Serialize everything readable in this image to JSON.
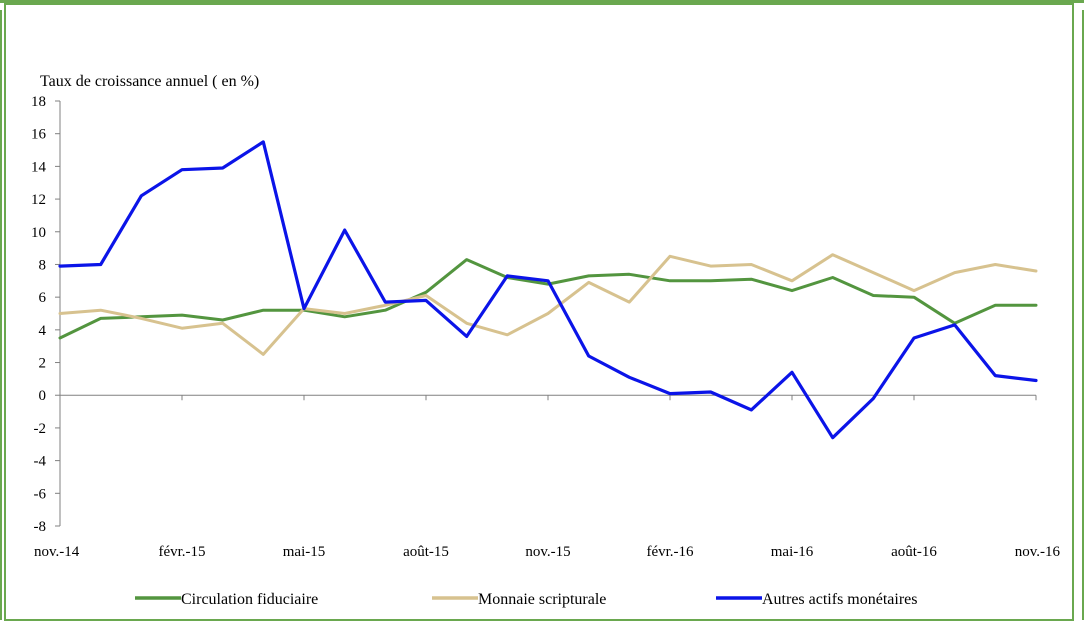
{
  "chart_data": {
    "type": "line",
    "title": "",
    "ylabel": "Taux de croissance annuel ( en %)",
    "xlabel": "",
    "ylim": [
      -8,
      18
    ],
    "yticks": [
      -8,
      -6,
      -4,
      -2,
      0,
      2,
      4,
      6,
      8,
      10,
      12,
      14,
      16,
      18
    ],
    "x": [
      "nov.-14",
      "déc.-14",
      "janv.-15",
      "févr.-15",
      "mars-15",
      "avr.-15",
      "mai-15",
      "juin-15",
      "juil.-15",
      "août-15",
      "sept.-15",
      "oct.-15",
      "nov.-15",
      "déc.-15",
      "janv.-16",
      "févr.-16",
      "mars-16",
      "avr.-16",
      "mai-16",
      "juin-16",
      "juil.-16",
      "août-16",
      "sept.-16",
      "oct.-16",
      "nov.-16"
    ],
    "xtick_labels": [
      "nov.-14",
      "févr.-15",
      "mai-15",
      "août-15",
      "nov.-15",
      "févr.-16",
      "mai-16",
      "août-16",
      "nov.-16"
    ],
    "legend_position": "bottom",
    "grid": false,
    "series": [
      {
        "name": "Circulation fiduciaire",
        "color": "#53953f",
        "values": [
          3.5,
          4.7,
          4.8,
          4.9,
          4.6,
          5.2,
          5.2,
          4.8,
          5.2,
          6.3,
          8.3,
          7.2,
          6.8,
          7.3,
          7.4,
          7.0,
          7.0,
          7.1,
          6.4,
          7.2,
          6.1,
          6.0,
          4.4,
          5.5,
          5.5
        ]
      },
      {
        "name": "Monnaie scripturale",
        "color": "#d7c28f",
        "values": [
          5.0,
          5.2,
          4.7,
          4.1,
          4.4,
          2.5,
          5.3,
          5.0,
          5.5,
          6.1,
          4.4,
          3.7,
          5.0,
          6.9,
          5.7,
          8.5,
          7.9,
          8.0,
          7.0,
          8.6,
          7.5,
          6.4,
          7.5,
          8.0,
          7.6
        ]
      },
      {
        "name": "Autres actifs monétaires",
        "color": "#0b14e8",
        "values": [
          7.9,
          8.0,
          12.2,
          13.8,
          13.9,
          15.5,
          5.3,
          10.1,
          5.7,
          5.8,
          3.6,
          7.3,
          7.0,
          2.4,
          1.1,
          0.1,
          0.2,
          -0.9,
          1.4,
          -2.6,
          -0.2,
          3.5,
          4.3,
          1.2,
          0.9
        ]
      }
    ]
  }
}
